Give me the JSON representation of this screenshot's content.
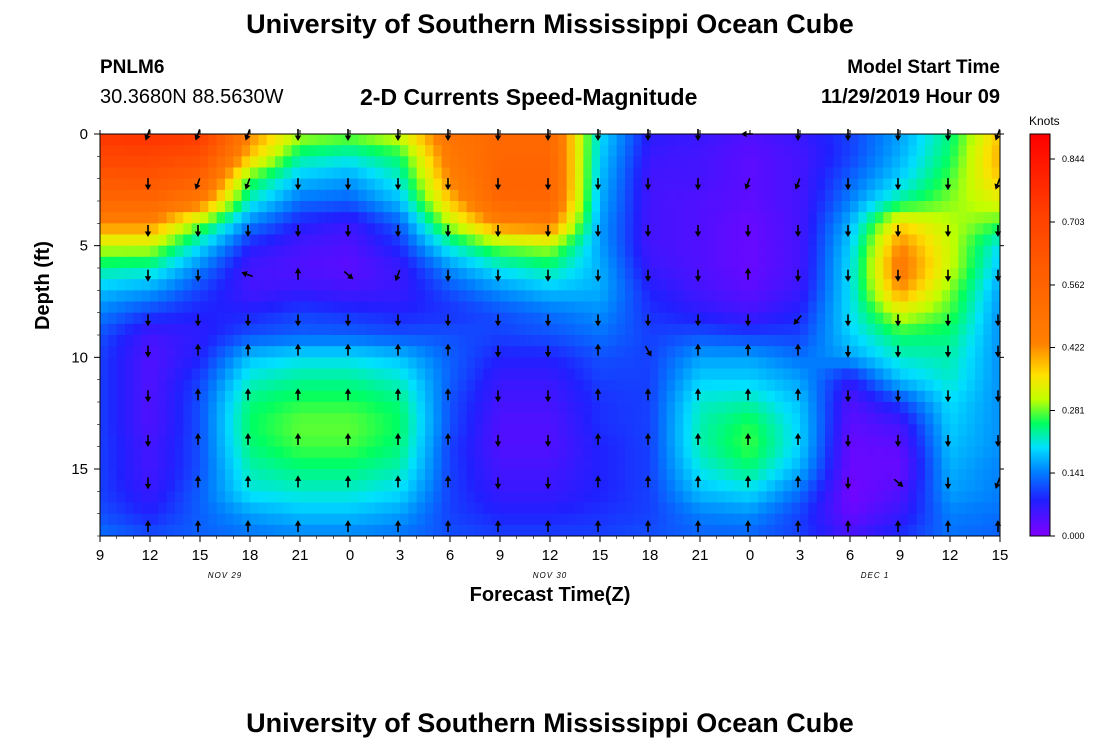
{
  "page": {
    "title_top": "University of Southern Mississippi Ocean Cube",
    "title_bottom": "University of Southern Mississippi Ocean Cube",
    "station_id": "PNLM6",
    "coordinates": "30.3680N 88.5630W",
    "model_start_label": "Model Start Time",
    "model_start_value": "11/29/2019 Hour 09"
  },
  "chart_data": {
    "type": "heatmap",
    "title": "2-D Currents Speed-Magnitude",
    "xlabel": "Forecast Time(Z)",
    "ylabel": "Depth (ft)",
    "x_range_hours": [
      0,
      54
    ],
    "y_range_ft": [
      0,
      18
    ],
    "x_ticks": [
      {
        "hour": 0,
        "label": "9"
      },
      {
        "hour": 3,
        "label": "12"
      },
      {
        "hour": 6,
        "label": "15"
      },
      {
        "hour": 9,
        "label": "18"
      },
      {
        "hour": 12,
        "label": "21"
      },
      {
        "hour": 15,
        "label": "0"
      },
      {
        "hour": 18,
        "label": "3"
      },
      {
        "hour": 21,
        "label": "6"
      },
      {
        "hour": 24,
        "label": "9"
      },
      {
        "hour": 27,
        "label": "12"
      },
      {
        "hour": 30,
        "label": "15"
      },
      {
        "hour": 33,
        "label": "18"
      },
      {
        "hour": 36,
        "label": "21"
      },
      {
        "hour": 39,
        "label": "0"
      },
      {
        "hour": 42,
        "label": "3"
      },
      {
        "hour": 45,
        "label": "6"
      },
      {
        "hour": 48,
        "label": "9"
      },
      {
        "hour": 51,
        "label": "12"
      },
      {
        "hour": 54,
        "label": "15"
      }
    ],
    "date_labels": [
      {
        "hour": 7.5,
        "label": "NOV 29"
      },
      {
        "hour": 27,
        "label": "NOV 30"
      },
      {
        "hour": 46.5,
        "label": "DEC 1"
      }
    ],
    "y_ticks": [
      0,
      5,
      10,
      15
    ],
    "colorbar": {
      "unit": "Knots",
      "ticks": [
        0.0,
        0.141,
        0.281,
        0.422,
        0.562,
        0.703,
        0.844
      ],
      "tick_labels": [
        "0.000",
        "0.141",
        "0.281",
        "0.422",
        "0.562",
        "0.703",
        "0.844"
      ],
      "range": [
        0,
        0.9
      ]
    },
    "grid": false,
    "depths_ft": [
      0,
      1,
      2,
      3,
      4,
      5,
      6,
      7,
      8,
      9,
      10,
      11,
      12,
      13,
      14,
      15,
      16,
      17,
      18
    ],
    "hours": [
      0,
      3,
      6,
      9,
      12,
      15,
      18,
      21,
      24,
      27,
      30,
      33,
      36,
      39,
      42,
      45,
      48,
      51,
      54
    ],
    "speed_knots": [
      [
        0.75,
        0.76,
        0.74,
        0.45,
        0.32,
        0.3,
        0.34,
        0.5,
        0.55,
        0.55,
        0.2,
        0.07,
        0.06,
        0.04,
        0.06,
        0.1,
        0.16,
        0.25,
        0.4
      ],
      [
        0.7,
        0.7,
        0.66,
        0.4,
        0.24,
        0.22,
        0.26,
        0.48,
        0.56,
        0.56,
        0.19,
        0.06,
        0.05,
        0.03,
        0.05,
        0.1,
        0.17,
        0.26,
        0.42
      ],
      [
        0.62,
        0.63,
        0.58,
        0.28,
        0.18,
        0.16,
        0.22,
        0.45,
        0.57,
        0.57,
        0.18,
        0.05,
        0.05,
        0.03,
        0.05,
        0.12,
        0.19,
        0.28,
        0.4
      ],
      [
        0.56,
        0.56,
        0.48,
        0.22,
        0.13,
        0.12,
        0.18,
        0.4,
        0.56,
        0.56,
        0.17,
        0.05,
        0.04,
        0.03,
        0.05,
        0.14,
        0.24,
        0.3,
        0.35
      ],
      [
        0.45,
        0.45,
        0.3,
        0.14,
        0.08,
        0.06,
        0.12,
        0.32,
        0.46,
        0.48,
        0.16,
        0.05,
        0.04,
        0.02,
        0.05,
        0.17,
        0.38,
        0.32,
        0.28
      ],
      [
        0.33,
        0.33,
        0.2,
        0.08,
        0.05,
        0.04,
        0.09,
        0.22,
        0.3,
        0.32,
        0.16,
        0.05,
        0.04,
        0.02,
        0.05,
        0.19,
        0.45,
        0.33,
        0.2
      ],
      [
        0.24,
        0.23,
        0.14,
        0.05,
        0.04,
        0.03,
        0.06,
        0.15,
        0.21,
        0.24,
        0.17,
        0.06,
        0.04,
        0.02,
        0.05,
        0.2,
        0.48,
        0.33,
        0.18
      ],
      [
        0.18,
        0.16,
        0.1,
        0.05,
        0.06,
        0.05,
        0.06,
        0.11,
        0.15,
        0.18,
        0.17,
        0.08,
        0.05,
        0.03,
        0.06,
        0.2,
        0.44,
        0.3,
        0.16
      ],
      [
        0.14,
        0.1,
        0.08,
        0.08,
        0.1,
        0.09,
        0.08,
        0.09,
        0.11,
        0.13,
        0.15,
        0.09,
        0.07,
        0.05,
        0.08,
        0.2,
        0.34,
        0.28,
        0.15
      ],
      [
        0.11,
        0.05,
        0.07,
        0.11,
        0.12,
        0.12,
        0.11,
        0.11,
        0.1,
        0.11,
        0.13,
        0.1,
        0.11,
        0.1,
        0.1,
        0.19,
        0.26,
        0.25,
        0.15
      ],
      [
        0.1,
        0.04,
        0.08,
        0.18,
        0.2,
        0.2,
        0.18,
        0.12,
        0.08,
        0.08,
        0.11,
        0.1,
        0.16,
        0.16,
        0.13,
        0.16,
        0.22,
        0.23,
        0.15
      ],
      [
        0.1,
        0.04,
        0.1,
        0.22,
        0.24,
        0.24,
        0.22,
        0.12,
        0.06,
        0.06,
        0.1,
        0.1,
        0.19,
        0.19,
        0.16,
        0.07,
        0.18,
        0.22,
        0.15
      ],
      [
        0.1,
        0.04,
        0.11,
        0.25,
        0.27,
        0.27,
        0.25,
        0.11,
        0.05,
        0.05,
        0.09,
        0.1,
        0.22,
        0.23,
        0.18,
        0.04,
        0.1,
        0.2,
        0.15
      ],
      [
        0.1,
        0.04,
        0.11,
        0.26,
        0.29,
        0.29,
        0.26,
        0.11,
        0.04,
        0.04,
        0.09,
        0.1,
        0.23,
        0.27,
        0.19,
        0.03,
        0.05,
        0.19,
        0.15
      ],
      [
        0.1,
        0.05,
        0.11,
        0.25,
        0.28,
        0.28,
        0.25,
        0.1,
        0.04,
        0.04,
        0.08,
        0.1,
        0.23,
        0.28,
        0.19,
        0.02,
        0.03,
        0.18,
        0.15
      ],
      [
        0.1,
        0.05,
        0.11,
        0.23,
        0.25,
        0.25,
        0.23,
        0.1,
        0.05,
        0.05,
        0.08,
        0.1,
        0.21,
        0.25,
        0.17,
        0.02,
        0.02,
        0.17,
        0.14
      ],
      [
        0.1,
        0.06,
        0.12,
        0.21,
        0.22,
        0.22,
        0.2,
        0.1,
        0.06,
        0.06,
        0.08,
        0.1,
        0.18,
        0.2,
        0.13,
        0.01,
        0.04,
        0.16,
        0.14
      ],
      [
        0.11,
        0.08,
        0.12,
        0.16,
        0.18,
        0.18,
        0.16,
        0.1,
        0.08,
        0.08,
        0.09,
        0.1,
        0.14,
        0.15,
        0.1,
        0.02,
        0.06,
        0.14,
        0.13
      ],
      [
        0.13,
        0.11,
        0.12,
        0.13,
        0.14,
        0.14,
        0.13,
        0.11,
        0.1,
        0.1,
        0.1,
        0.11,
        0.12,
        0.12,
        0.1,
        0.05,
        0.09,
        0.13,
        0.12
      ]
    ],
    "vector_depths_ft": [
      0,
      2.2,
      4.3,
      6.3,
      8.3,
      9.7,
      11.7,
      13.7,
      15.6,
      17.6
    ],
    "vector_hours": [
      3,
      6,
      9,
      12,
      15,
      18,
      21,
      24,
      27,
      30,
      33,
      36,
      39,
      42,
      45,
      48,
      51,
      54
    ],
    "vector_direction_deg": [
      [
        200,
        200,
        200,
        180,
        180,
        180,
        180,
        180,
        180,
        180,
        180,
        180,
        270,
        180,
        180,
        180,
        180,
        200
      ],
      [
        180,
        200,
        200,
        180,
        180,
        180,
        180,
        180,
        180,
        180,
        180,
        180,
        200,
        200,
        180,
        180,
        180,
        200
      ],
      [
        180,
        180,
        180,
        180,
        180,
        180,
        180,
        180,
        180,
        180,
        180,
        180,
        180,
        180,
        180,
        180,
        180,
        180
      ],
      [
        180,
        180,
        290,
        0,
        130,
        200,
        180,
        180,
        180,
        180,
        180,
        180,
        0,
        180,
        180,
        180,
        180,
        180
      ],
      [
        180,
        180,
        180,
        180,
        180,
        180,
        180,
        180,
        180,
        180,
        180,
        180,
        180,
        220,
        180,
        180,
        180,
        180
      ],
      [
        180,
        0,
        0,
        0,
        0,
        0,
        0,
        180,
        180,
        0,
        150,
        0,
        0,
        0,
        180,
        180,
        180,
        180
      ],
      [
        180,
        0,
        0,
        0,
        0,
        0,
        0,
        180,
        180,
        0,
        0,
        0,
        0,
        0,
        180,
        180,
        180,
        180
      ],
      [
        180,
        0,
        0,
        0,
        0,
        0,
        0,
        180,
        180,
        0,
        0,
        0,
        0,
        0,
        180,
        180,
        180,
        180
      ],
      [
        180,
        0,
        0,
        0,
        0,
        0,
        0,
        180,
        180,
        0,
        0,
        0,
        0,
        0,
        180,
        130,
        180,
        200
      ],
      [
        0,
        0,
        0,
        0,
        0,
        0,
        0,
        0,
        0,
        0,
        0,
        0,
        0,
        0,
        0,
        0,
        0,
        0
      ]
    ]
  }
}
